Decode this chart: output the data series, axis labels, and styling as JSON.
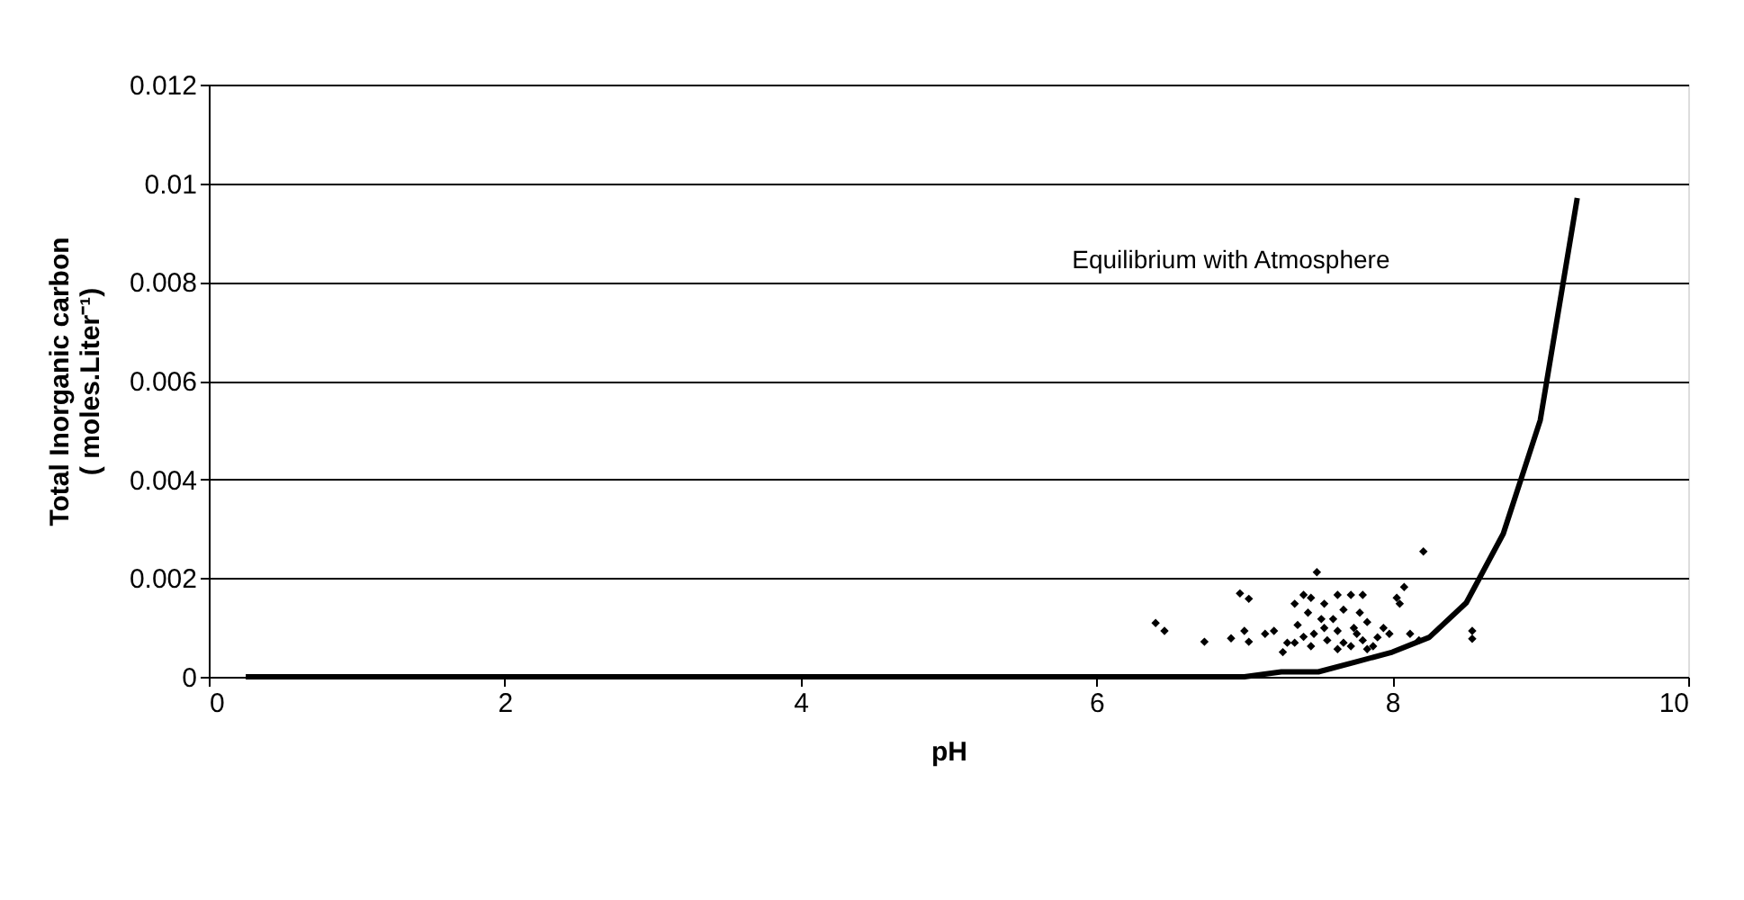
{
  "chart_data": {
    "type": "scatter",
    "xlabel": "pH",
    "ylabel": "Total Inorganic carbon ( moles.Liter⁻¹)",
    "annotations": [
      "Equilibrium with Atmosphere"
    ],
    "xlim": [
      0,
      10
    ],
    "xticks": [
      0,
      2,
      4,
      6,
      8,
      10
    ],
    "ylim": [
      0,
      0.012
    ],
    "yticks": [
      0,
      0.002,
      0.004,
      0.006,
      0.008,
      0.01,
      0.012
    ],
    "grid": "y",
    "series": [
      {
        "type": "line",
        "color": "#000000",
        "marker": "none",
        "line_style": "solid",
        "x": [
          0.25,
          1,
          2,
          3,
          4,
          5,
          6,
          6.5,
          6.75,
          7,
          7.25,
          7.5,
          7.75,
          8,
          8.25,
          8.5,
          8.75,
          9,
          9.25
        ],
        "values": [
          0,
          0,
          0,
          0,
          0,
          0,
          0,
          0,
          0,
          0,
          0.0001,
          0.0001,
          0.0003,
          0.0005,
          0.0008,
          0.0015,
          0.0029,
          0.0052,
          0.0097
        ]
      },
      {
        "color": "#000000",
        "marker": "diamond",
        "x": [
          6.4,
          6.46,
          6.73,
          6.91,
          6.97,
          7.03,
          7.0,
          7.03,
          7.14,
          7.2,
          7.26,
          7.29,
          7.36,
          7.34,
          7.4,
          7.45,
          7.49,
          7.43,
          7.47,
          7.45,
          7.54,
          7.56,
          7.63,
          7.6,
          7.63,
          7.72,
          7.67,
          7.74,
          7.8,
          7.78,
          7.83,
          7.8,
          7.87,
          7.72,
          7.94,
          7.98,
          8.03,
          8.05,
          8.08,
          8.12,
          8.18,
          8.21,
          8.54,
          8.54,
          7.54,
          7.52,
          7.4,
          7.76,
          7.63,
          7.9,
          7.34,
          7.67,
          7.83
        ],
        "values": [
          0.00109,
          0.00093,
          0.00071,
          0.00078,
          0.00169,
          0.00158,
          0.00093,
          0.00071,
          0.00087,
          0.00093,
          0.0005,
          0.00069,
          0.00105,
          0.00148,
          0.00166,
          0.0016,
          0.00212,
          0.0013,
          0.00087,
          0.00062,
          0.00148,
          0.00074,
          0.00166,
          0.00117,
          0.00056,
          0.00166,
          0.00136,
          0.00099,
          0.00166,
          0.0013,
          0.00111,
          0.00074,
          0.00062,
          0.00062,
          0.00099,
          0.00087,
          0.0016,
          0.00148,
          0.00182,
          0.00087,
          0.00074,
          0.00254,
          0.00093,
          0.00077,
          0.00099,
          0.00117,
          0.00081,
          0.00087,
          0.00093,
          0.0008,
          0.00069,
          0.00069,
          0.00056
        ]
      }
    ]
  }
}
